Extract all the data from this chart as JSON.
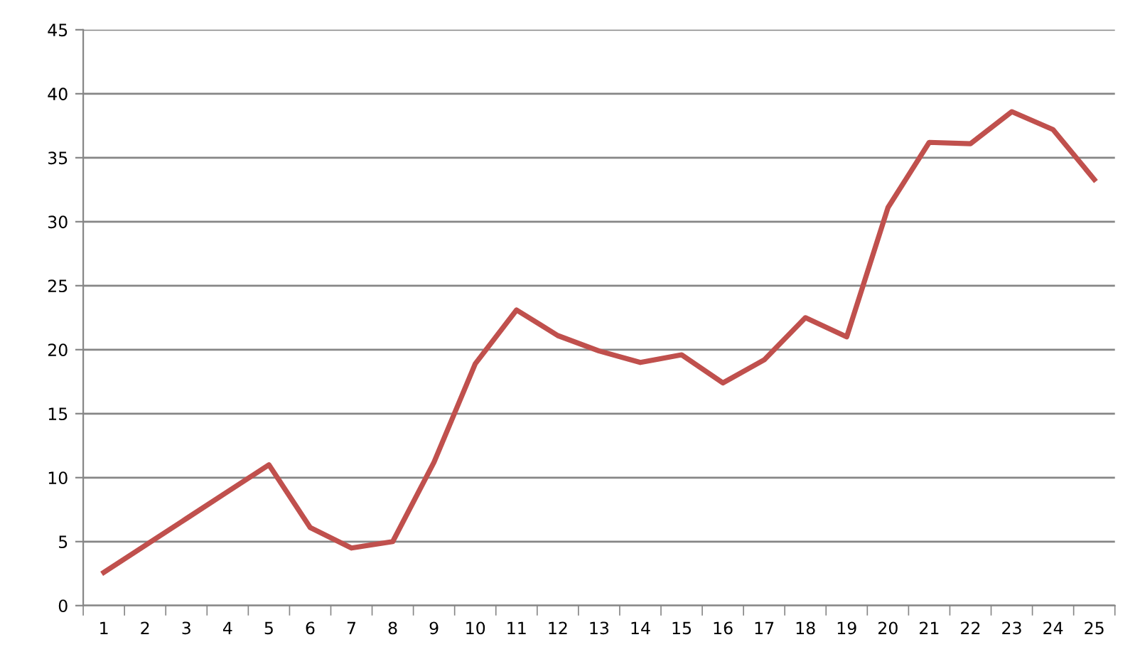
{
  "chart_data": {
    "type": "line",
    "categories": [
      "1",
      "2",
      "3",
      "4",
      "5",
      "6",
      "7",
      "8",
      "9",
      "10",
      "11",
      "12",
      "13",
      "14",
      "15",
      "16",
      "17",
      "18",
      "19",
      "20",
      "21",
      "22",
      "23",
      "24",
      "25"
    ],
    "series": [
      {
        "color": "#c0504d",
        "values": [
          2.6,
          4.7,
          6.8,
          8.9,
          11.0,
          6.1,
          4.5,
          5.0,
          11.2,
          18.9,
          23.1,
          21.1,
          19.9,
          19.0,
          19.6,
          17.4,
          19.2,
          22.5,
          21.0,
          31.1,
          36.2,
          36.1,
          38.6,
          37.2,
          33.3
        ]
      }
    ],
    "ylim": [
      0,
      45
    ],
    "yticks": [
      0,
      5,
      10,
      15,
      20,
      25,
      30,
      35,
      40,
      45
    ],
    "grid": "y",
    "legend": false,
    "marker": "none",
    "line_style": "solid"
  }
}
